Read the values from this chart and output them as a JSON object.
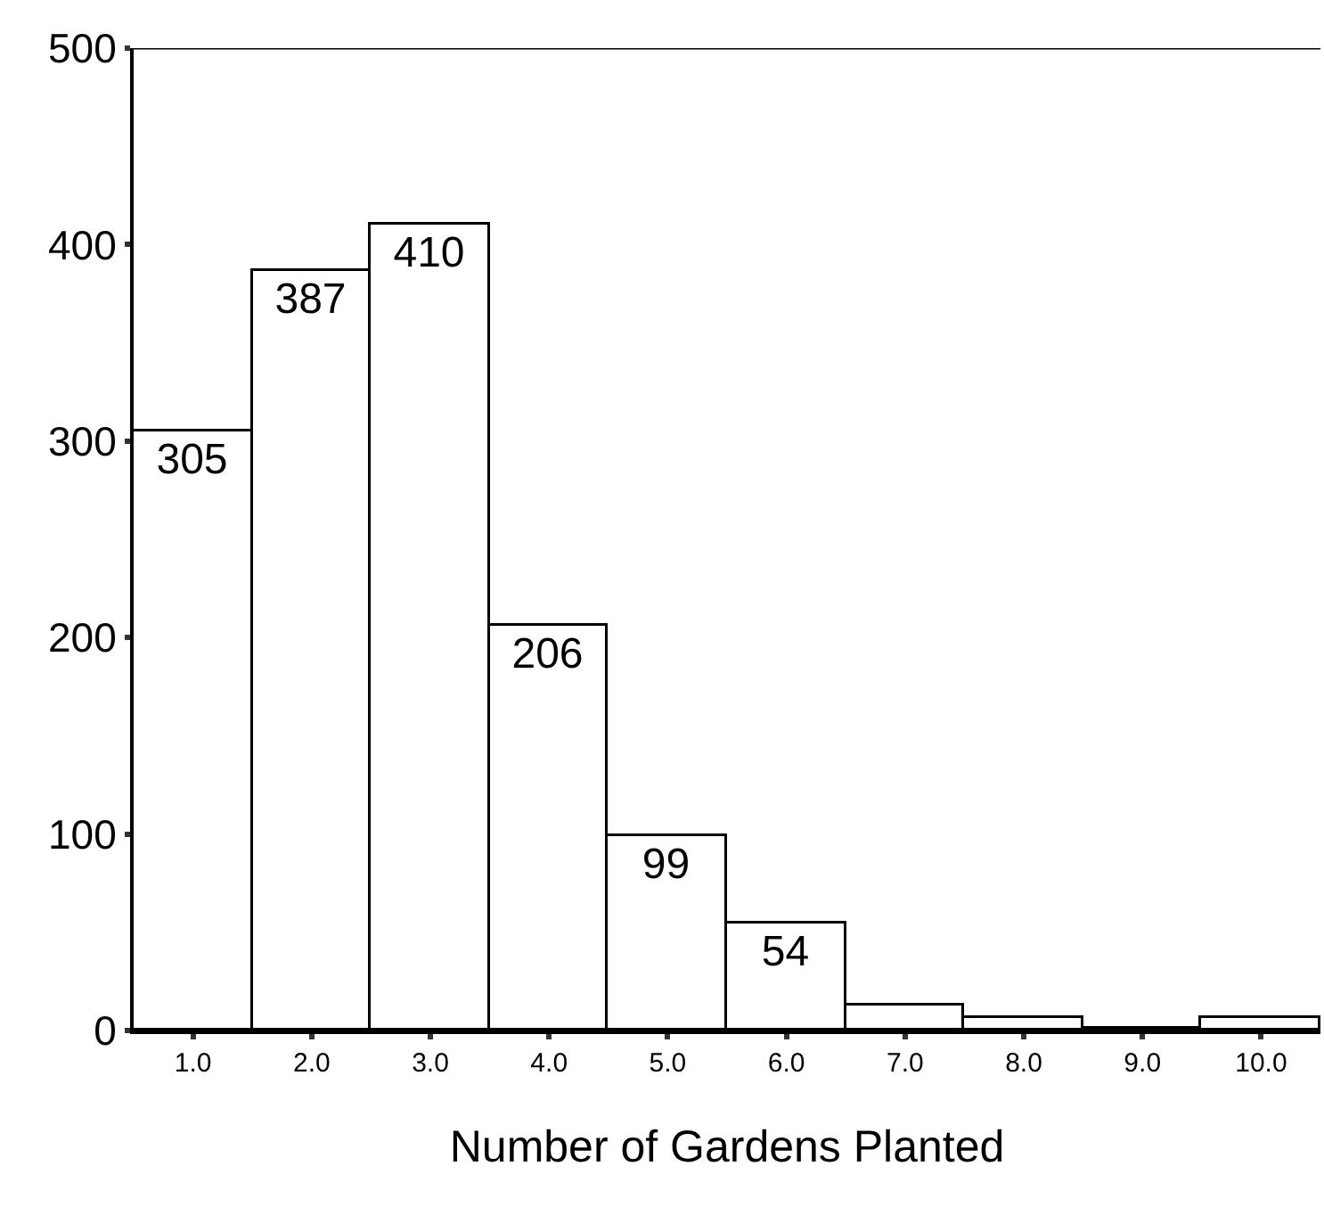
{
  "chart_data": {
    "type": "bar",
    "xlabel": "Number of Gardens Planted",
    "categories": [
      "1.0",
      "2.0",
      "3.0",
      "4.0",
      "5.0",
      "6.0",
      "7.0",
      "8.0",
      "9.0",
      "10.0"
    ],
    "values": [
      305,
      387,
      410,
      206,
      99,
      54,
      13,
      6,
      1,
      6
    ],
    "value_labels": [
      "305",
      "387",
      "410",
      "206",
      "99",
      "54",
      null,
      null,
      null,
      null
    ],
    "color": "#ffffff",
    "ylim": [
      0,
      500
    ],
    "yticks": [
      0,
      100,
      200,
      300,
      400,
      500
    ],
    "grid": false,
    "legend": false
  }
}
